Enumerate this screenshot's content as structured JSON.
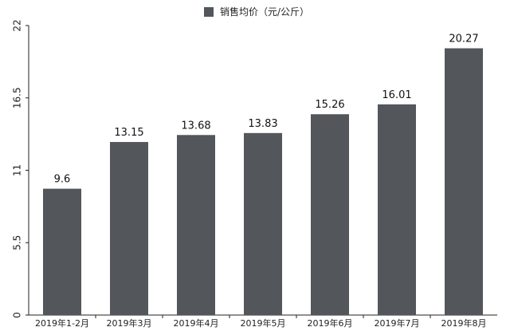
{
  "chart_data": {
    "type": "bar",
    "title": "",
    "legend": {
      "label": "销售均价（元/公斤）",
      "position": "top-center"
    },
    "categories": [
      "2019年1-2月",
      "2019年3月",
      "2019年4月",
      "2019年5月",
      "2019年6月",
      "2019年7月",
      "2019年8月"
    ],
    "series": [
      {
        "name": "销售均价（元/公斤）",
        "values": [
          9.6,
          13.15,
          13.68,
          13.83,
          15.26,
          16.01,
          20.27
        ]
      }
    ],
    "data_labels": [
      "9.6",
      "13.15",
      "13.68",
      "13.83",
      "15.26",
      "16.01",
      "20.27"
    ],
    "yticks": [
      "0",
      "5.5",
      "11",
      "16.5",
      "22"
    ],
    "ylim": [
      0,
      22
    ],
    "grid": false,
    "colors": {
      "bar": "#53565a",
      "axis": "#222222"
    }
  }
}
